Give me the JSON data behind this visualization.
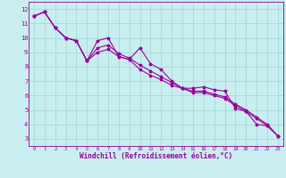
{
  "xlabel": "Windchill (Refroidissement éolien,°C)",
  "bg_color": "#c8eef0",
  "line_color": "#990099",
  "grid_color": "#aadddd",
  "xlim": [
    -0.5,
    23.5
  ],
  "ylim": [
    2.5,
    12.5
  ],
  "xticks": [
    0,
    1,
    2,
    3,
    4,
    5,
    6,
    7,
    8,
    9,
    10,
    11,
    12,
    13,
    14,
    15,
    16,
    17,
    18,
    19,
    20,
    21,
    22,
    23
  ],
  "yticks": [
    3,
    4,
    5,
    6,
    7,
    8,
    9,
    10,
    11,
    12
  ],
  "series1_x": [
    0,
    1,
    2,
    3,
    4,
    5,
    6,
    7,
    8,
    9,
    10,
    11,
    12,
    13,
    14,
    15,
    16,
    17,
    18,
    19,
    20,
    21,
    22,
    23
  ],
  "series1_y": [
    11.5,
    11.8,
    10.7,
    10.0,
    9.8,
    8.4,
    9.8,
    10.0,
    8.7,
    8.5,
    9.3,
    8.2,
    7.8,
    7.0,
    6.5,
    6.5,
    6.6,
    6.4,
    6.3,
    5.1,
    4.9,
    4.0,
    3.9,
    3.2
  ],
  "series2_x": [
    0,
    1,
    2,
    3,
    4,
    5,
    6,
    7,
    8,
    9,
    10,
    11,
    12,
    13,
    14,
    15,
    16,
    17,
    18,
    19,
    20,
    21,
    22,
    23
  ],
  "series2_y": [
    11.5,
    11.8,
    10.7,
    10.0,
    9.8,
    8.4,
    9.3,
    9.5,
    8.9,
    8.6,
    8.1,
    7.7,
    7.3,
    6.9,
    6.5,
    6.3,
    6.3,
    6.1,
    5.9,
    5.4,
    5.0,
    4.5,
    4.0,
    3.2
  ],
  "series3_x": [
    0,
    1,
    2,
    3,
    4,
    5,
    6,
    7,
    8,
    9,
    10,
    11,
    12,
    13,
    14,
    15,
    16,
    17,
    18,
    19,
    20,
    21,
    22,
    23
  ],
  "series3_y": [
    11.5,
    11.8,
    10.7,
    10.0,
    9.8,
    8.4,
    9.0,
    9.2,
    8.7,
    8.5,
    7.8,
    7.4,
    7.1,
    6.7,
    6.5,
    6.2,
    6.2,
    6.0,
    5.8,
    5.3,
    4.9,
    4.4,
    3.9,
    3.2
  ]
}
